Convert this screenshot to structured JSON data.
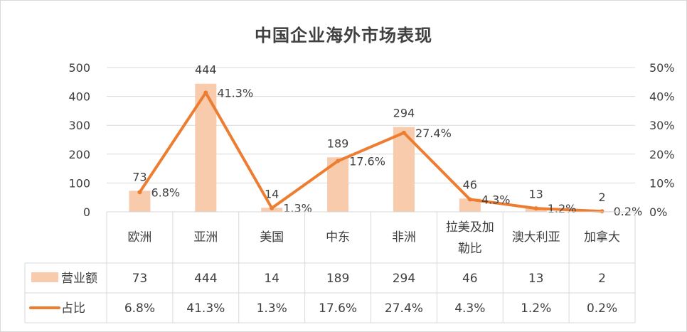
{
  "chart_data": {
    "type": "bar",
    "title": "中国企业海外市场表现",
    "categories": [
      "欧洲",
      "亚洲",
      "美国",
      "中东",
      "非洲",
      "拉美及加勒比",
      "澳大利亚",
      "加拿大"
    ],
    "category_lines": [
      [
        "欧洲"
      ],
      [
        "亚洲"
      ],
      [
        "美国"
      ],
      [
        "中东"
      ],
      [
        "非洲"
      ],
      [
        "拉美及加",
        "勒比"
      ],
      [
        "澳大利亚"
      ],
      [
        "加拿大"
      ]
    ],
    "series": [
      {
        "name": "营业额",
        "type": "bar",
        "axis": "left",
        "values": [
          73,
          444,
          14,
          189,
          294,
          46,
          13,
          2
        ],
        "labels": [
          "73",
          "444",
          "14",
          "189",
          "294",
          "46",
          "13",
          "2"
        ],
        "color": "#f8cbad"
      },
      {
        "name": "占比",
        "type": "line",
        "axis": "right",
        "values": [
          6.8,
          41.3,
          1.3,
          17.6,
          27.4,
          4.3,
          1.2,
          0.2
        ],
        "labels": [
          "6.8%",
          "41.3%",
          "1.3%",
          "17.6%",
          "27.4%",
          "4.3%",
          "1.2%",
          "0.2%"
        ],
        "color": "#ed7d31"
      }
    ],
    "y_left": {
      "lim": [
        0,
        500
      ],
      "ticks": [
        "0",
        "100",
        "200",
        "300",
        "400",
        "500"
      ]
    },
    "y_right": {
      "lim": [
        0,
        50
      ],
      "ticks": [
        "0%",
        "10%",
        "20%",
        "30%",
        "40%",
        "50%"
      ]
    },
    "data_table": true,
    "legend": "data-table"
  }
}
